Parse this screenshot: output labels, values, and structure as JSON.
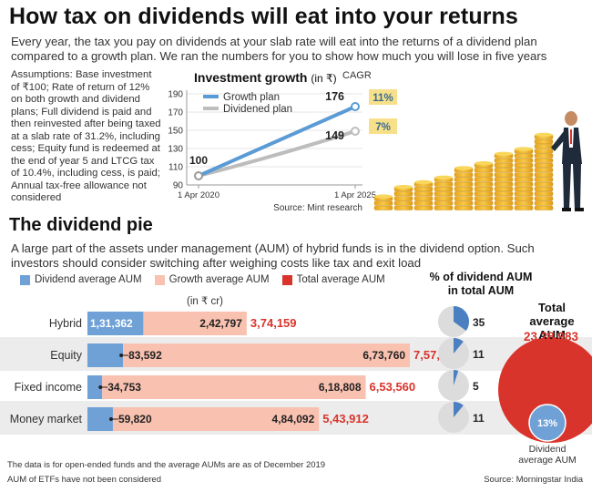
{
  "header": {
    "title": "How tax on dividends will eat into your returns",
    "intro": "Every year, the tax you pay on dividends at your slab rate will eat into the returns of a dividend plan compared to a growth plan. We ran the numbers for you to show how much you will lose in five years"
  },
  "assumptions": "Assumptions: Base investment of ₹100; Rate of return of 12% on both growth and dividend plans; Full dividend is paid and then reinvested after being taxed at a slab rate of 31.2%, including cess; Equity fund is redeemed at the end of year 5 and LTCG tax of 10.4%, including cess, is paid; Annual tax-free allowance not considered",
  "growth_chart": {
    "title": "Investment growth",
    "unit": "(in ₹)",
    "cagr_label": "CAGR",
    "source": "Source: Mint research",
    "colors": {
      "growth": "#5b9bd5",
      "dividend": "#bdbdbd",
      "badge": "#f7e08a",
      "badge_text": "#3a6a91"
    }
  },
  "section2": {
    "title": "The dividend pie",
    "intro": "A large part of the assets under management (AUM) of hybrid funds is in the dividend option. Such investors should consider switching after weighing costs like tax and exit load",
    "legend": [
      {
        "label": "Dividend average AUM",
        "color": "#6fa1d6"
      },
      {
        "label": "Growth average AUM",
        "color": "#f9c1b0"
      },
      {
        "label": "Total average AUM",
        "color": "#d9342b"
      }
    ],
    "unit": "(in ₹ cr)",
    "pct_title": "% of dividend AUM in total AUM",
    "total_title": "Total average AUM",
    "total_value": "23,28,983",
    "div_share_label": "13%",
    "div_avg_label": "Dividend average AUM",
    "footnote1": "The data is for open-ended funds and the average AUMs are as of December 2019",
    "footnote2": "AUM of ETFs have not been considered",
    "source": "Source: Morningstar India"
  },
  "chart_data": [
    {
      "type": "line",
      "title": "Investment growth",
      "unit": "(in ₹)",
      "x": [
        "1 Apr 2020",
        "1 Apr 2025"
      ],
      "ylim": [
        90,
        190
      ],
      "yticks": [
        90,
        110,
        130,
        150,
        170,
        190
      ],
      "series": [
        {
          "name": "Growth plan",
          "values": [
            100,
            176
          ],
          "cagr": "11%",
          "color": "#5b9bd5"
        },
        {
          "name": "Dividened plan",
          "values": [
            100,
            149
          ],
          "cagr": "7%",
          "color": "#bdbdbd"
        }
      ],
      "start_label": "100",
      "end_labels": [
        "176",
        "149"
      ]
    },
    {
      "type": "bar",
      "stacked": true,
      "unit": "(in ₹ cr)",
      "categories": [
        "Hybrid",
        "Equity",
        "Fixed income",
        "Money market"
      ],
      "series": [
        {
          "name": "Dividend average AUM",
          "values": [
            131362,
            83592,
            34753,
            59820
          ],
          "labels": [
            "1,31,362",
            "83,592",
            "34,753",
            "59,820"
          ]
        },
        {
          "name": "Growth average AUM",
          "values": [
            242797,
            673760,
            618808,
            484092
          ],
          "labels": [
            "2,42,797",
            "6,73,760",
            "6,18,808",
            "4,84,092"
          ]
        },
        {
          "name": "Total average AUM",
          "values": [
            374159,
            757352,
            653560,
            543912
          ],
          "labels": [
            "3,74,159",
            "7,57,352",
            "6,53,560",
            "5,43,912"
          ]
        }
      ],
      "dividend_share_pct": [
        35,
        11,
        5,
        11
      ]
    },
    {
      "type": "pie",
      "title": "Total average AUM",
      "total": 2328983,
      "total_label": "23,28,983",
      "dividend_share_pct": 13,
      "dividend_share_label": "13%"
    }
  ]
}
